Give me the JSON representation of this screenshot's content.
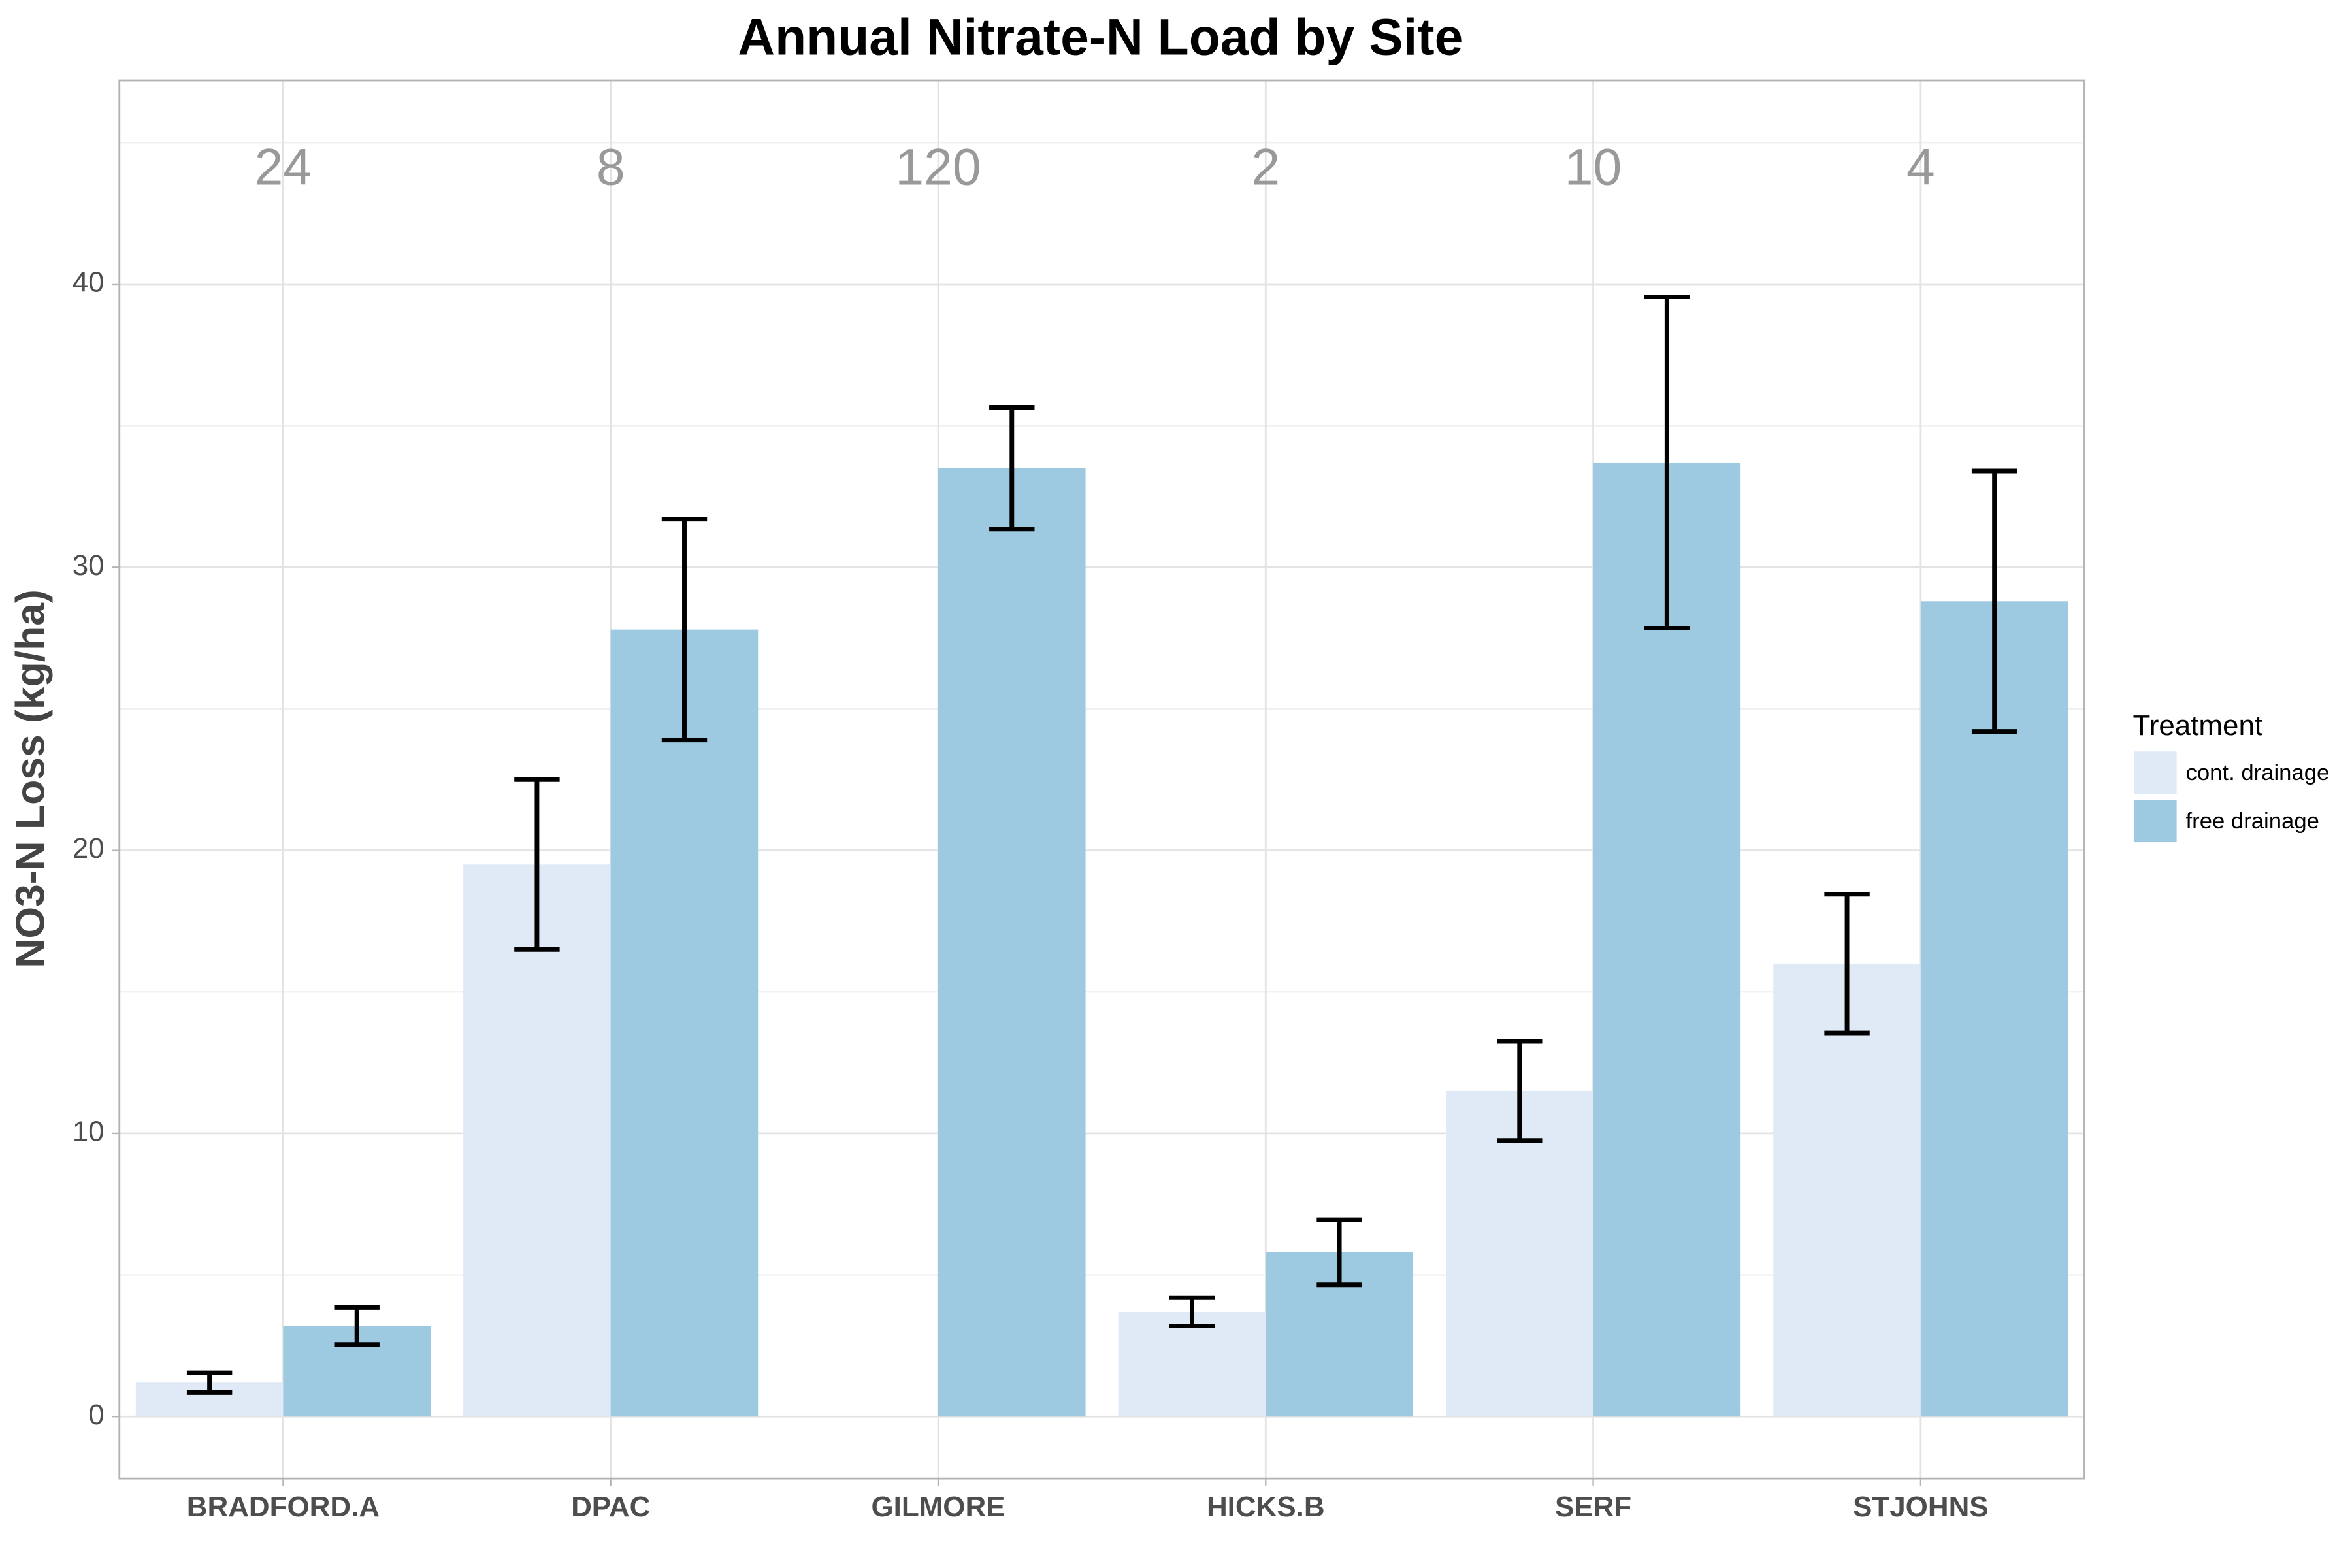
{
  "chart_data": {
    "type": "bar",
    "title": "Annual Nitrate-N Load by Site",
    "y_label": "NO3-N Loss (kg/ha)",
    "legend_title": "Treatment",
    "legend_position": "right",
    "grid": true,
    "categories": [
      "BRADFORD.A",
      "DPAC",
      "GILMORE",
      "HICKS.B",
      "SERF",
      "STJOHNS"
    ],
    "annotations": [
      24,
      8,
      120,
      2,
      10,
      4
    ],
    "annotation_y": 44,
    "series": [
      {
        "name": "cont. drainage",
        "color": "#dfeaf6",
        "values": [
          1.2,
          19.5,
          null,
          3.7,
          11.5,
          16.0
        ],
        "errors": [
          0.35,
          3.0,
          null,
          0.5,
          1.75,
          2.45
        ]
      },
      {
        "name": "free drainage",
        "color": "#9ecae1",
        "values": [
          3.2,
          27.8,
          33.5,
          5.8,
          33.7,
          28.8
        ],
        "errors": [
          0.65,
          3.9,
          2.15,
          1.15,
          5.85,
          4.6
        ]
      }
    ],
    "ylim": [
      -2.19,
      47.2
    ],
    "yticks": [
      0,
      10,
      20,
      30,
      40
    ]
  }
}
